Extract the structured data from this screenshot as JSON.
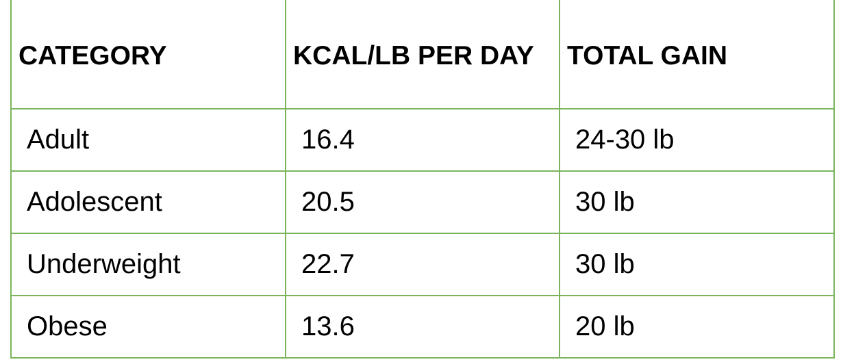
{
  "table": {
    "headers": [
      "CATEGORY",
      "KCAL/LB PER DAY",
      "TOTAL GAIN"
    ],
    "rows": [
      [
        "Adult",
        "16.4",
        "24-30 lb"
      ],
      [
        "Adolescent",
        "20.5",
        "30 lb"
      ],
      [
        "Underweight",
        "22.7",
        "30 lb"
      ],
      [
        "Obese",
        "13.6",
        "20 lb"
      ]
    ]
  },
  "colors": {
    "border": "#7ab55c",
    "text": "#000000",
    "background": "#ffffff"
  }
}
